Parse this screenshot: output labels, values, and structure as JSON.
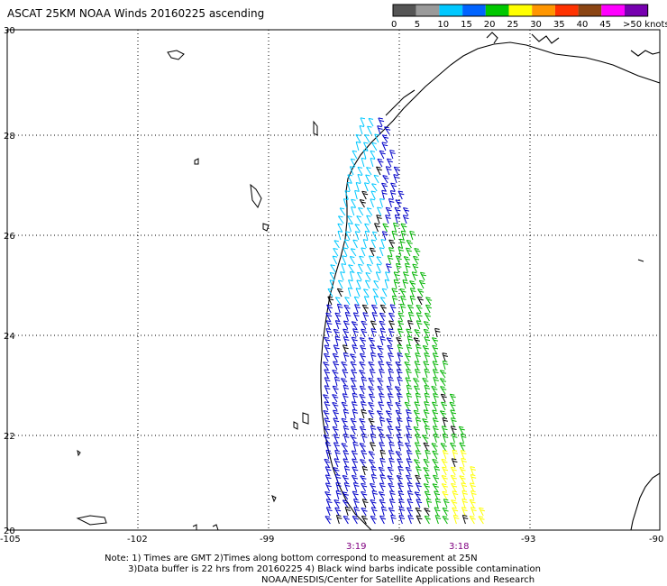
{
  "title": "ASCAT 25KM NOAA Winds 20160225 ascending",
  "legend": {
    "labels": [
      "0",
      "5",
      "10",
      "15",
      "20",
      "25",
      "30",
      "35",
      "40",
      "45",
      ">50 knots"
    ],
    "colors": [
      "#555555",
      "#9a9a9a",
      "#00c8ff",
      "#0064ff",
      "#00c800",
      "#ffff00",
      "#ff9600",
      "#ff3200",
      "#8b4513",
      "#ff00ff",
      "#7700b0"
    ]
  },
  "axes": {
    "lon_labels": [
      "-105",
      "-102",
      "-99",
      "-96",
      "-93",
      "-90"
    ],
    "lat_labels": [
      "30",
      "28",
      "26",
      "24",
      "22",
      "20"
    ]
  },
  "pass_times": [
    "3:19",
    "3:18"
  ],
  "notes": [
    "Note: 1) Times are GMT 2)Times along bottom correspond to measurement at 25N",
    "3)Data buffer is 22 hrs from 20160225 4) Black wind barbs indicate possible contamination",
    "NOAA/NESDIS/Center for Satellite Applications and Research"
  ],
  "barb_colors": {
    "light": "#00c8ff",
    "medium": "#0000c8",
    "strong": "#00b400",
    "stronger": "#ffff00",
    "contaminated": "#000000"
  }
}
